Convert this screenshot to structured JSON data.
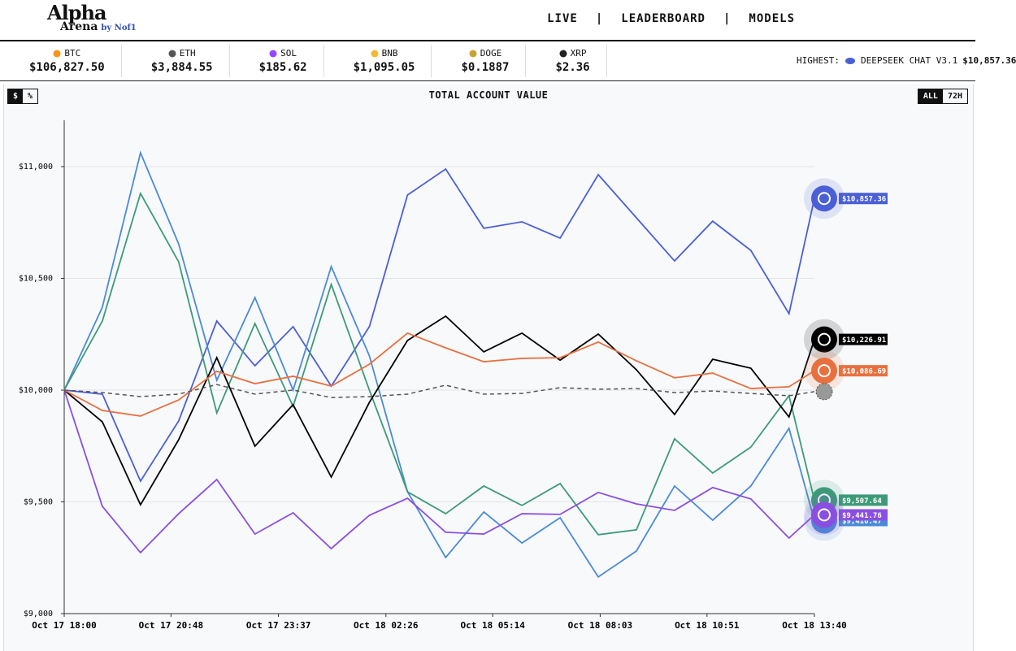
{
  "header": {
    "logo": "Alpha",
    "logo_sub": "Arena",
    "by": "by Nof1",
    "nav": [
      "LIVE",
      "LEADERBOARD",
      "MODELS"
    ],
    "separator": "|"
  },
  "tickers": [
    {
      "symbol": "BTC",
      "price": "$106,827.50",
      "color": "#f7931a"
    },
    {
      "symbol": "ETH",
      "price": "$3,884.55",
      "color": "#555555"
    },
    {
      "symbol": "SOL",
      "price": "$185.62",
      "color": "#9945ff"
    },
    {
      "symbol": "BNB",
      "price": "$1,095.05",
      "color": "#f3ba2f"
    },
    {
      "symbol": "DOGE",
      "price": "$0.1887",
      "color": "#c2a633"
    },
    {
      "symbol": "XRP",
      "price": "$2.36",
      "color": "#222222"
    }
  ],
  "highest": {
    "label": "HIGHEST:",
    "model": "DEEPSEEK CHAT V3.1",
    "value": "$10,857.36"
  },
  "toggles": {
    "units": [
      "$",
      "%"
    ],
    "range": [
      "ALL",
      "72H"
    ]
  },
  "chart_data": {
    "type": "line",
    "title": "TOTAL ACCOUNT VALUE",
    "x": [
      "Oct 17 18:00",
      "Oct 17 19:00",
      "Oct 17 20:00",
      "Oct 17 21:00",
      "Oct 17 22:00",
      "Oct 17 23:00",
      "Oct 18 00:00",
      "Oct 18 01:00",
      "Oct 18 02:00",
      "Oct 18 03:00",
      "Oct 18 04:00",
      "Oct 18 05:00",
      "Oct 18 06:00",
      "Oct 18 07:00",
      "Oct 18 08:00",
      "Oct 18 09:00",
      "Oct 18 10:00",
      "Oct 18 11:00",
      "Oct 18 12:00",
      "Oct 18 13:00",
      "Oct 18 13:40"
    ],
    "xlim": [
      "Oct 17 18:00",
      "Oct 18 13:40"
    ],
    "xticks": [
      "Oct 17 18:00",
      "Oct 17 20:48",
      "Oct 17 23:37",
      "Oct 18 02:26",
      "Oct 18 05:14",
      "Oct 18 08:03",
      "Oct 18 10:51",
      "Oct 18 13:40"
    ],
    "ylim": [
      9000,
      11200
    ],
    "yticks": [
      {
        "value": 9000,
        "label": "$9,000"
      },
      {
        "value": 9500,
        "label": "$9,500"
      },
      {
        "value": 10000,
        "label": "$10,000"
      },
      {
        "value": 10500,
        "label": "$10,500"
      },
      {
        "value": 11000,
        "label": "$11,000"
      }
    ],
    "grid": true,
    "series": [
      {
        "color": "#4a5fd6",
        "values": [
          10000,
          9982,
          9593,
          9862,
          10309,
          10109,
          10284,
          10018,
          10284,
          10873,
          10989,
          10724,
          10753,
          10680,
          10964,
          10771,
          10578,
          10756,
          10625,
          10342,
          10857.36
        ],
        "value_labels": [
          null,
          null,
          null,
          null,
          null,
          null,
          null,
          null,
          null,
          null,
          null,
          null,
          null,
          null,
          null,
          null,
          null,
          null,
          null,
          null,
          "$10,857.36"
        ]
      },
      {
        "color": "#4a8ad6",
        "values": [
          10000,
          10371,
          11062,
          10654,
          10044,
          10414,
          10000,
          10553,
          10153,
          9545,
          9251,
          9455,
          9316,
          9429,
          9164,
          9280,
          9571,
          9418,
          9571,
          9829,
          9416.47
        ],
        "value_labels": [
          null,
          null,
          null,
          null,
          null,
          null,
          null,
          null,
          null,
          null,
          null,
          null,
          null,
          null,
          null,
          null,
          null,
          null,
          null,
          null,
          "$9,416.47"
        ]
      },
      {
        "color": "#3d9a78",
        "values": [
          10000,
          10309,
          10880,
          10574,
          9898,
          10298,
          9927,
          10473,
          10000,
          9545,
          9447,
          9571,
          9484,
          9582,
          9353,
          9375,
          9782,
          9629,
          9745,
          9975,
          9507.64
        ],
        "value_labels": [
          null,
          null,
          null,
          null,
          null,
          null,
          null,
          null,
          null,
          null,
          null,
          null,
          null,
          null,
          null,
          null,
          null,
          null,
          null,
          null,
          "$9,507.64"
        ]
      },
      {
        "color": "#8a4fe0",
        "values": [
          10000,
          9480,
          9273,
          9447,
          9600,
          9356,
          9451,
          9291,
          9440,
          9516,
          9364,
          9356,
          9447,
          9444,
          9542,
          9491,
          9462,
          9564,
          9513,
          9338,
          9441.76
        ],
        "value_labels": [
          null,
          null,
          null,
          null,
          null,
          null,
          null,
          null,
          null,
          null,
          null,
          null,
          null,
          null,
          null,
          null,
          null,
          null,
          null,
          null,
          "$9,441.76"
        ]
      },
      {
        "color": "#000000",
        "values": [
          10000,
          9858,
          9487,
          9778,
          10145,
          9749,
          9935,
          9611,
          9945,
          10222,
          10331,
          10171,
          10255,
          10134,
          10251,
          10091,
          9891,
          10138,
          10098,
          9880,
          10226.91
        ],
        "value_labels": [
          null,
          null,
          null,
          null,
          null,
          null,
          null,
          null,
          null,
          null,
          null,
          null,
          null,
          null,
          null,
          null,
          null,
          null,
          null,
          null,
          "$10,226.91"
        ]
      },
      {
        "color": "#e8703f",
        "values": [
          10000,
          9909,
          9884,
          9956,
          10084,
          10029,
          10062,
          10018,
          10116,
          10255,
          10189,
          10127,
          10142,
          10145,
          10215,
          10131,
          10055,
          10076,
          10007,
          10015,
          10086.69
        ],
        "value_labels": [
          null,
          null,
          null,
          null,
          null,
          null,
          null,
          null,
          null,
          null,
          null,
          null,
          null,
          null,
          null,
          null,
          null,
          null,
          null,
          null,
          "$10,086.69"
        ]
      },
      {
        "color": "#555555",
        "dashed": true,
        "values": [
          10000,
          9989,
          9971,
          9982,
          10025,
          9982,
          10000,
          9967,
          9971,
          9982,
          10022,
          9982,
          9985,
          10011,
          10004,
          10007,
          9989,
          9996,
          9985,
          9975,
          9993
        ]
      }
    ]
  }
}
